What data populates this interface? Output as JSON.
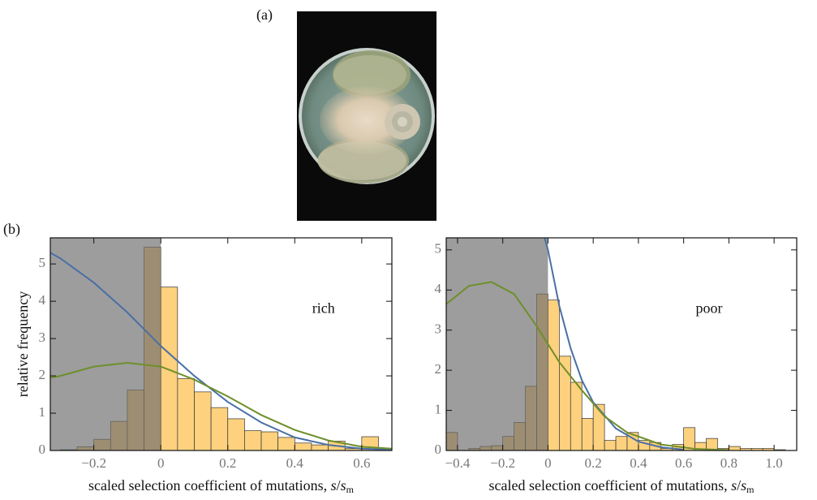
{
  "panel_labels": [
    "(a)",
    "(b)"
  ],
  "chart_data": [
    {
      "type": "histogram",
      "bins": [
        -0.3,
        -0.25,
        -0.2,
        -0.15,
        -0.1,
        -0.05,
        0,
        0.05,
        0.1,
        0.15,
        0.2,
        0.25,
        0.3,
        0.35,
        0.4,
        0.45,
        0.5,
        0.55,
        0.6,
        0.65
      ],
      "values": [
        0.02,
        0.1,
        0.3,
        0.78,
        1.62,
        5.45,
        4.38,
        1.93,
        1.57,
        1.15,
        0.85,
        0.53,
        0.5,
        0.35,
        0.2,
        0.15,
        0.25,
        0.05,
        0.37
      ],
      "color": "#fdd17e",
      "shade_to": 0,
      "series": [
        {
          "color": "#4a6fa5",
          "x": [
            -0.33,
            -0.3,
            -0.2,
            -0.1,
            0,
            0.1,
            0.2,
            0.3,
            0.4,
            0.5,
            0.6,
            0.69
          ],
          "values": [
            5.3,
            5.15,
            4.5,
            3.7,
            2.8,
            2.0,
            1.3,
            0.75,
            0.35,
            0.15,
            0.05,
            0.02
          ]
        },
        {
          "color": "#6e8f2a",
          "x": [
            -0.33,
            -0.3,
            -0.2,
            -0.1,
            0,
            0.1,
            0.2,
            0.3,
            0.4,
            0.5,
            0.6,
            0.69
          ],
          "values": [
            1.95,
            2.0,
            2.25,
            2.35,
            2.25,
            1.9,
            1.45,
            0.95,
            0.55,
            0.27,
            0.1,
            0.05
          ]
        }
      ],
      "annotation": "rich",
      "x_label": [
        "scaled  selection coefficient of mutations, ",
        "s",
        "/",
        "s",
        "m"
      ],
      "y_label": "relative frequency",
      "xlim": [
        -0.33,
        0.69
      ],
      "ylim": [
        0,
        5.7
      ],
      "xticks": [
        {
          "value": -0.2,
          "label": "−0.2"
        },
        0,
        0.2,
        0.4,
        0.6
      ],
      "yticks": [
        0,
        1,
        2,
        3,
        4,
        5
      ]
    },
    {
      "type": "histogram",
      "bins": [
        -0.45,
        -0.4,
        -0.35,
        -0.3,
        -0.25,
        -0.2,
        -0.15,
        -0.1,
        -0.05,
        0,
        0.05,
        0.1,
        0.15,
        0.2,
        0.25,
        0.3,
        0.35,
        0.4,
        0.45,
        0.5,
        0.55,
        0.6,
        0.65,
        0.7,
        0.75,
        0.8,
        0.85,
        0.9,
        0.95,
        1.0,
        1.05
      ],
      "values": [
        0.45,
        0,
        0.05,
        0.1,
        0.12,
        0.35,
        0.7,
        1.6,
        3.9,
        3.75,
        2.35,
        1.7,
        0.8,
        1.15,
        0.25,
        0.35,
        0.45,
        0.25,
        0.2,
        0.05,
        0.15,
        0.57,
        0.2,
        0.3,
        0.05,
        0.1,
        0.05,
        0.05,
        0.05,
        0.02
      ],
      "color": "#fdd17e",
      "shade_to": 0,
      "series": [
        {
          "color": "#4a6fa5",
          "x": [
            -0.015,
            0,
            0.05,
            0.1,
            0.15,
            0.2,
            0.3,
            0.4,
            0.5,
            0.6
          ],
          "values": [
            5.3,
            5.0,
            3.6,
            2.55,
            1.75,
            1.2,
            0.55,
            0.22,
            0.08,
            0.02
          ]
        },
        {
          "color": "#6e8f2a",
          "x": [
            -0.45,
            -0.35,
            -0.25,
            -0.15,
            -0.05,
            0.05,
            0.15,
            0.25,
            0.35,
            0.5,
            0.65,
            0.8
          ],
          "values": [
            3.65,
            4.1,
            4.2,
            3.9,
            3.1,
            2.2,
            1.5,
            0.85,
            0.45,
            0.15,
            0.04,
            0.01
          ]
        }
      ],
      "annotation": "poor",
      "x_label": [
        "scaled  selection coefficient of mutations, ",
        "s",
        "/",
        "s",
        "m"
      ],
      "xlim": [
        -0.45,
        1.1
      ],
      "ylim": [
        0,
        5.3
      ],
      "xticks": [
        {
          "value": -0.4,
          "label": "−0.4"
        },
        {
          "value": -0.2,
          "label": "−0.2"
        },
        0,
        0.2,
        0.4,
        0.6,
        0.8,
        {
          "value": 1.0,
          "label": "1.0"
        }
      ],
      "yticks": [
        0,
        1,
        2,
        3,
        4,
        5
      ]
    }
  ]
}
